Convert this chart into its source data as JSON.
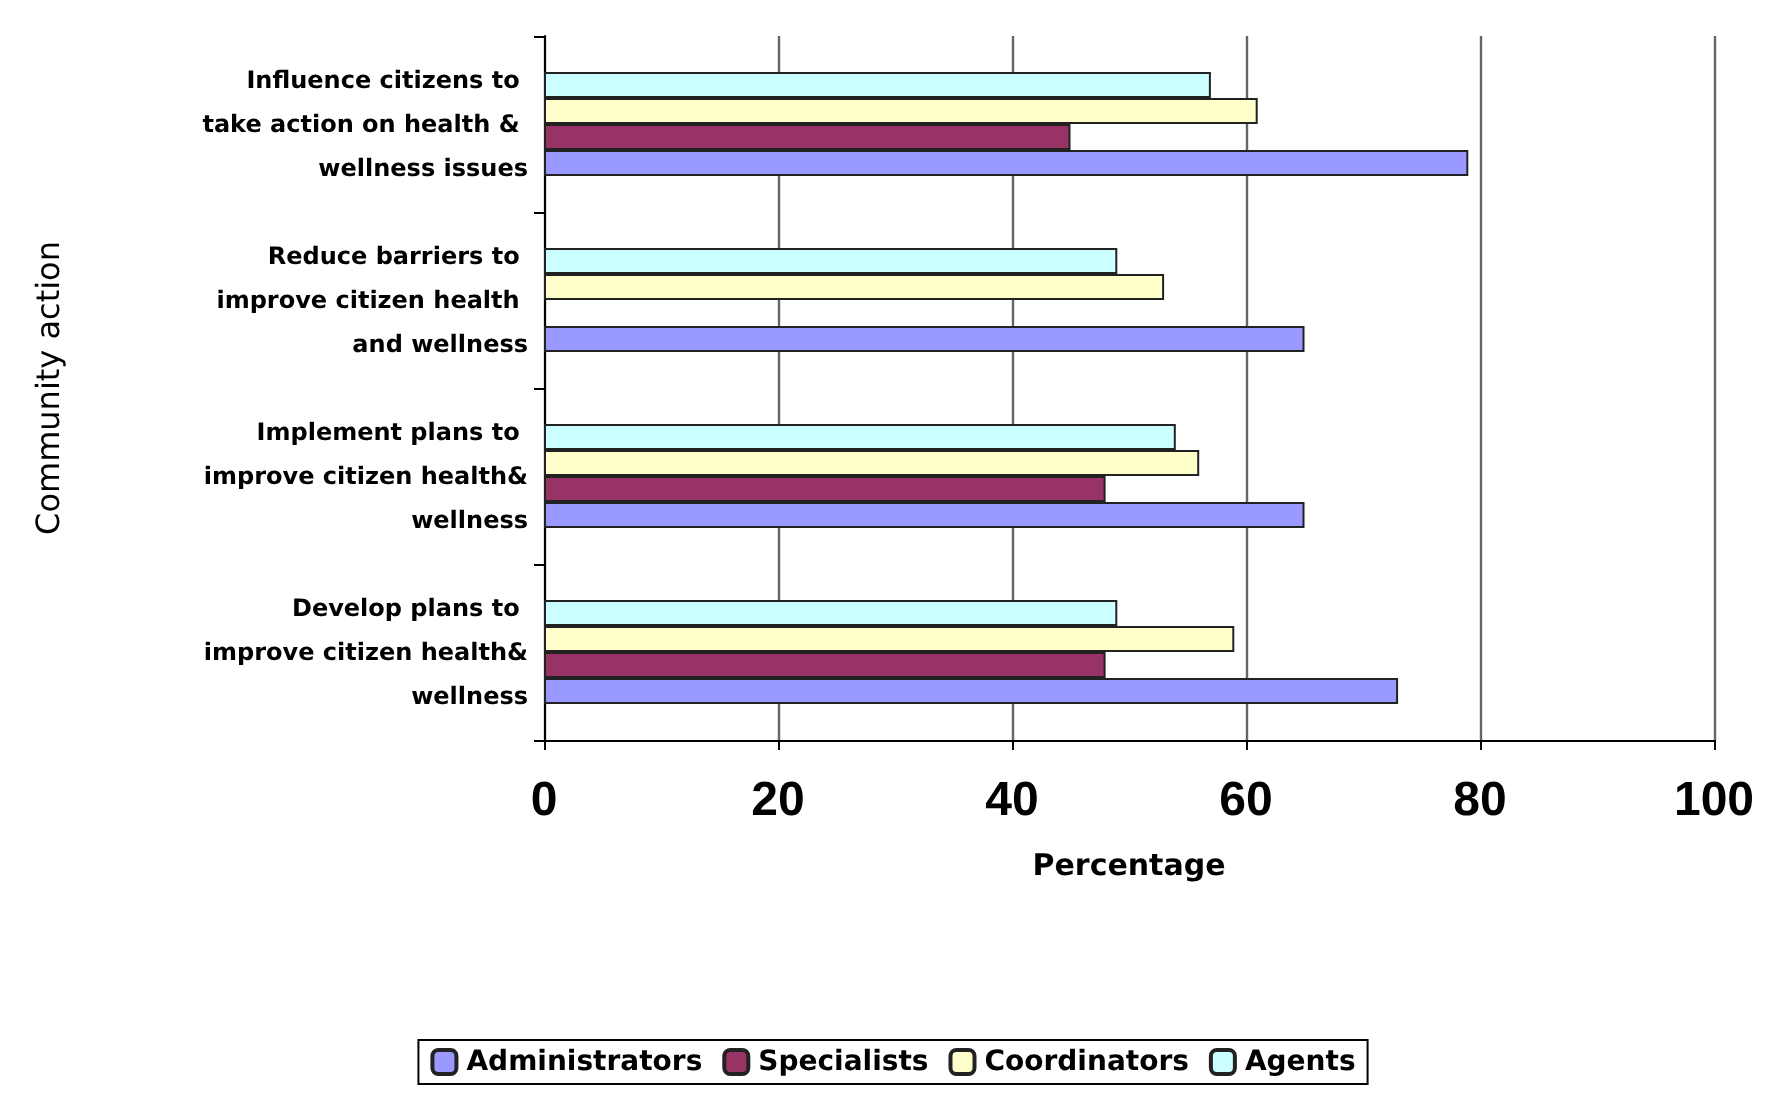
{
  "chart_data": {
    "type": "bar",
    "orientation": "horizontal",
    "xlabel": "Percentage",
    "ylabel": "Community action",
    "categories": [
      "Influence citizens to take action on health & wellness issues",
      "Reduce barriers to improve citizen health and wellness",
      "Implement plans to improve citizen health&wellness",
      "Develop plans to improve citizen health&wellness"
    ],
    "series": [
      {
        "name": "Administrators",
        "color": "#9999ff",
        "values": [
          79,
          65,
          65,
          73
        ]
      },
      {
        "name": "Specialists",
        "color": "#993366",
        "values": [
          45,
          null,
          48,
          48
        ]
      },
      {
        "name": "Coordinators",
        "color": "#ffffcc",
        "values": [
          61,
          53,
          56,
          59
        ]
      },
      {
        "name": "Agents",
        "color": "#ccffff",
        "values": [
          57,
          49,
          54,
          49
        ]
      }
    ],
    "xlim": [
      0,
      100
    ],
    "xticks": [
      0,
      20,
      40,
      60,
      80,
      100
    ],
    "grid": "x",
    "legend": "bottom"
  }
}
